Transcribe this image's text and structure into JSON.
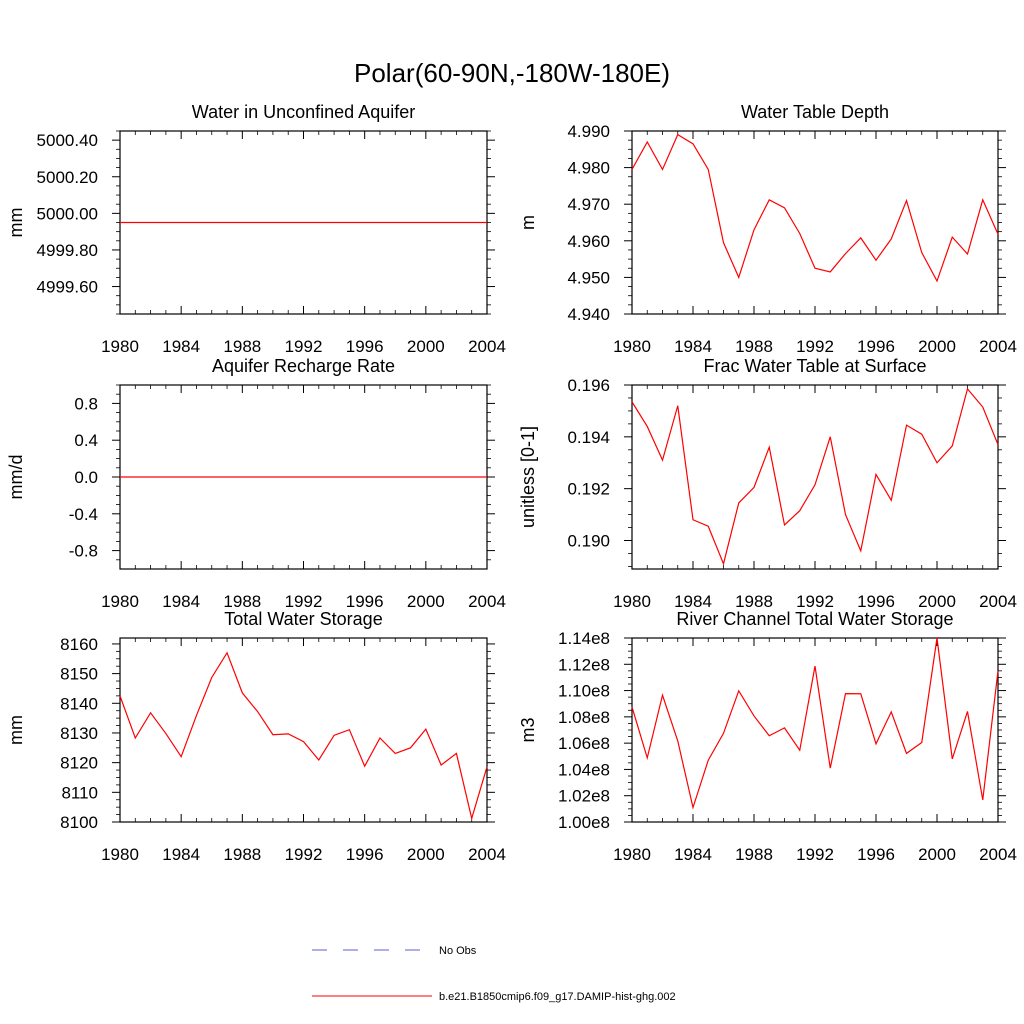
{
  "figure": {
    "title": "Polar(60-90N,-180W-180E)"
  },
  "legend": {
    "items": [
      {
        "label": "No Obs",
        "color": "#5a5fd0",
        "dash": "dashed"
      },
      {
        "label": "b.e21.B1850cmip6.f09_g17.DAMIP-hist-ghg.002",
        "color": "#ff0000",
        "dash": "solid"
      }
    ]
  },
  "chart_data": [
    {
      "type": "line",
      "title": "Water in Unconfined Aquifer",
      "xlabel": "",
      "ylabel": "mm",
      "xlim": [
        1980,
        2004
      ],
      "ylim": [
        4999.45,
        5000.45
      ],
      "xticks": [
        1980,
        1984,
        1988,
        1992,
        1996,
        2000,
        2004
      ],
      "xtick_labels": [
        "1980",
        "1984",
        "1988",
        "1992",
        "1996",
        "2000",
        "2004"
      ],
      "yticks": [
        4999.6,
        4999.8,
        5000.0,
        5000.2,
        5000.4
      ],
      "ytick_labels": [
        "4999.60",
        "4999.80",
        "5000.00",
        "5000.20",
        "5000.40"
      ],
      "series": [
        {
          "color": "#ff0000",
          "x": [
            1980,
            1981,
            1982,
            1983,
            1984,
            1985,
            1986,
            1987,
            1988,
            1989,
            1990,
            1991,
            1992,
            1993,
            1994,
            1995,
            1996,
            1997,
            1998,
            1999,
            2000,
            2001,
            2002,
            2003,
            2004
          ],
          "y": [
            4999.95,
            4999.95,
            4999.95,
            4999.95,
            4999.95,
            4999.95,
            4999.95,
            4999.95,
            4999.95,
            4999.95,
            4999.95,
            4999.95,
            4999.95,
            4999.95,
            4999.95,
            4999.95,
            4999.95,
            4999.95,
            4999.95,
            4999.95,
            4999.95,
            4999.95,
            4999.95,
            4999.95,
            4999.95
          ]
        }
      ]
    },
    {
      "type": "line",
      "title": "Water Table Depth",
      "xlabel": "",
      "ylabel": "m",
      "xlim": [
        1980,
        2004
      ],
      "ylim": [
        4.94,
        4.99
      ],
      "xticks": [
        1980,
        1984,
        1988,
        1992,
        1996,
        2000,
        2004
      ],
      "xtick_labels": [
        "1980",
        "1984",
        "1988",
        "1992",
        "1996",
        "2000",
        "2004"
      ],
      "yticks": [
        4.94,
        4.95,
        4.96,
        4.97,
        4.98,
        4.99
      ],
      "ytick_labels": [
        "4.940",
        "4.950",
        "4.960",
        "4.970",
        "4.980",
        "4.990"
      ],
      "series": [
        {
          "color": "#ff0000",
          "x": [
            1980,
            1981,
            1982,
            1983,
            1984,
            1985,
            1986,
            1987,
            1988,
            1989,
            1990,
            1991,
            1992,
            1993,
            1994,
            1995,
            1996,
            1997,
            1998,
            1999,
            2000,
            2001,
            2002,
            2003,
            2004
          ],
          "y": [
            4.9795,
            4.987,
            4.9795,
            4.989,
            4.9865,
            4.9795,
            4.9595,
            4.95,
            4.963,
            4.9712,
            4.969,
            4.962,
            4.9525,
            4.9515,
            4.9565,
            4.9608,
            4.9547,
            4.9605,
            4.971,
            4.9568,
            4.949,
            4.961,
            4.9564,
            4.9712,
            4.9618
          ]
        }
      ]
    },
    {
      "type": "line",
      "title": "Aquifer Recharge Rate",
      "xlabel": "",
      "ylabel": "mm/d",
      "xlim": [
        1980,
        2004
      ],
      "ylim": [
        -1.0,
        1.0
      ],
      "xticks": [
        1980,
        1984,
        1988,
        1992,
        1996,
        2000,
        2004
      ],
      "xtick_labels": [
        "1980",
        "1984",
        "1988",
        "1992",
        "1996",
        "2000",
        "2004"
      ],
      "yticks": [
        -0.8,
        -0.4,
        0.0,
        0.4,
        0.8
      ],
      "ytick_labels": [
        "-0.8",
        "-0.4",
        "0.0",
        "0.4",
        "0.8"
      ],
      "series": [
        {
          "color": "#ff0000",
          "x": [
            1980,
            1981,
            1982,
            1983,
            1984,
            1985,
            1986,
            1987,
            1988,
            1989,
            1990,
            1991,
            1992,
            1993,
            1994,
            1995,
            1996,
            1997,
            1998,
            1999,
            2000,
            2001,
            2002,
            2003,
            2004
          ],
          "y": [
            0,
            0,
            0,
            0,
            0,
            0,
            0,
            0,
            0,
            0,
            0,
            0,
            0,
            0,
            0,
            0,
            0,
            0,
            0,
            0,
            0,
            0,
            0,
            0,
            0
          ]
        }
      ]
    },
    {
      "type": "line",
      "title": "Frac Water Table at Surface",
      "xlabel": "",
      "ylabel": "unitless [0-1]",
      "xlim": [
        1980,
        2004
      ],
      "ylim": [
        0.1889,
        0.196
      ],
      "xticks": [
        1980,
        1984,
        1988,
        1992,
        1996,
        2000,
        2004
      ],
      "xtick_labels": [
        "1980",
        "1984",
        "1988",
        "1992",
        "1996",
        "2000",
        "2004"
      ],
      "yticks": [
        0.19,
        0.192,
        0.194,
        0.196
      ],
      "ytick_labels": [
        "0.190",
        "0.192",
        "0.194",
        "0.196"
      ],
      "series": [
        {
          "color": "#ff0000",
          "x": [
            1980,
            1981,
            1982,
            1983,
            1984,
            1985,
            1986,
            1987,
            1988,
            1989,
            1990,
            1991,
            1992,
            1993,
            1994,
            1995,
            1996,
            1997,
            1998,
            1999,
            2000,
            2001,
            2002,
            2003,
            2004
          ],
          "y": [
            0.19535,
            0.1944,
            0.1931,
            0.1952,
            0.1908,
            0.19055,
            0.1891,
            0.19145,
            0.19205,
            0.1936,
            0.1906,
            0.19115,
            0.19215,
            0.194,
            0.191,
            0.1896,
            0.19255,
            0.19155,
            0.19445,
            0.1941,
            0.193,
            0.19365,
            0.19585,
            0.19515,
            0.1937
          ]
        }
      ]
    },
    {
      "type": "line",
      "title": "Total Water Storage",
      "xlabel": "",
      "ylabel": "mm",
      "xlim": [
        1980,
        2004
      ],
      "ylim": [
        8100,
        8162
      ],
      "xticks": [
        1980,
        1984,
        1988,
        1992,
        1996,
        2000,
        2004
      ],
      "xtick_labels": [
        "1980",
        "1984",
        "1988",
        "1992",
        "1996",
        "2000",
        "2004"
      ],
      "yticks": [
        8100,
        8110,
        8120,
        8130,
        8140,
        8150,
        8160
      ],
      "ytick_labels": [
        "8100",
        "8110",
        "8120",
        "8130",
        "8140",
        "8150",
        "8160"
      ],
      "series": [
        {
          "color": "#ff0000",
          "x": [
            1980,
            1981,
            1982,
            1983,
            1984,
            1985,
            1986,
            1987,
            1988,
            1989,
            1990,
            1991,
            1992,
            1993,
            1994,
            1995,
            1996,
            1997,
            1998,
            1999,
            2000,
            2001,
            2002,
            2003,
            2004
          ],
          "y": [
            8142.5,
            8128.3,
            8136.8,
            8129.8,
            8122.0,
            8135.9,
            8148.7,
            8157.0,
            8143.5,
            8137.2,
            8129.4,
            8129.7,
            8127.1,
            8120.9,
            8129.2,
            8131.1,
            8118.8,
            8128.3,
            8123.1,
            8125.0,
            8131.3,
            8119.2,
            8123.1,
            8101.2,
            8118.6
          ]
        }
      ]
    },
    {
      "type": "line",
      "title": "River Channel Total Water Storage",
      "xlabel": "",
      "ylabel": "m3",
      "xlim": [
        1980,
        2004
      ],
      "ylim": [
        100000000.0,
        114000000.0
      ],
      "xticks": [
        1980,
        1984,
        1988,
        1992,
        1996,
        2000,
        2004
      ],
      "xtick_labels": [
        "1980",
        "1984",
        "1988",
        "1992",
        "1996",
        "2000",
        "2004"
      ],
      "yticks": [
        100000000.0,
        102000000.0,
        104000000.0,
        106000000.0,
        108000000.0,
        110000000.0,
        112000000.0,
        114000000.0
      ],
      "ytick_labels": [
        "1.00e8",
        "1.02e8",
        "1.04e8",
        "1.06e8",
        "1.08e8",
        "1.10e8",
        "1.12e8",
        "1.14e8"
      ],
      "series": [
        {
          "color": "#ff0000",
          "x": [
            1980,
            1981,
            1982,
            1983,
            1984,
            1985,
            1986,
            1987,
            1988,
            1989,
            1990,
            1991,
            1992,
            1993,
            1994,
            1995,
            1996,
            1997,
            1998,
            1999,
            2000,
            2001,
            2002,
            2003,
            2004
          ],
          "y": [
            108750000.0,
            104880000.0,
            109650000.0,
            106170000.0,
            101100000.0,
            104700000.0,
            106750000.0,
            109980000.0,
            108070000.0,
            106560000.0,
            107160000.0,
            105460000.0,
            111860000.0,
            104100000.0,
            109770000.0,
            109760000.0,
            105950000.0,
            108380000.0,
            105220000.0,
            106050000.0,
            114000000.0,
            104800000.0,
            108410000.0,
            101680000.0,
            111500000.0
          ]
        }
      ]
    }
  ]
}
